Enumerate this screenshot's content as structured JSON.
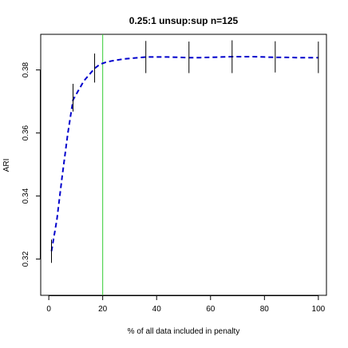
{
  "chart_data": {
    "type": "line",
    "title": "0.25:1 unsup:sup n=125",
    "xlabel": "% of all data included in penalty",
    "ylabel": "ARI",
    "xlim": [
      -3,
      103
    ],
    "ylim": [
      0.3085,
      0.3913
    ],
    "xticks": [
      "0",
      "20",
      "40",
      "60",
      "80",
      "100"
    ],
    "yticks": [
      "0.32",
      "0.34",
      "0.36",
      "0.38"
    ],
    "grid": false,
    "series": [
      {
        "color": "#0000cc",
        "style": "dashed",
        "x": [
          1,
          3,
          5,
          7,
          9,
          11,
          13,
          15,
          17,
          19,
          21,
          23,
          25,
          28,
          32,
          36,
          40,
          44,
          48,
          52,
          56,
          60,
          64,
          68,
          72,
          76,
          80,
          84,
          88,
          92,
          96,
          100
        ],
        "y": [
          0.3225,
          0.3325,
          0.3465,
          0.3595,
          0.3705,
          0.3735,
          0.3765,
          0.3785,
          0.3805,
          0.3818,
          0.3824,
          0.3828,
          0.3831,
          0.3835,
          0.3838,
          0.3841,
          0.3841,
          0.3841,
          0.384,
          0.3839,
          0.3839,
          0.384,
          0.3841,
          0.3842,
          0.3842,
          0.3842,
          0.3841,
          0.384,
          0.384,
          0.3839,
          0.3839,
          0.3839
        ]
      }
    ],
    "error_bars": [
      {
        "x": 1,
        "low": 0.3188,
        "high": 0.3262
      },
      {
        "x": 9,
        "low": 0.3668,
        "high": 0.3756
      },
      {
        "x": 17,
        "low": 0.376,
        "high": 0.3852
      },
      {
        "x": 36,
        "low": 0.379,
        "high": 0.3892
      },
      {
        "x": 52,
        "low": 0.379,
        "high": 0.389
      },
      {
        "x": 68,
        "low": 0.379,
        "high": 0.3894
      },
      {
        "x": 84,
        "low": 0.3792,
        "high": 0.3891
      },
      {
        "x": 100,
        "low": 0.379,
        "high": 0.389
      }
    ],
    "reference_lines": [
      {
        "orientation": "vertical",
        "x": 20,
        "color": "#33cc33"
      }
    ]
  }
}
